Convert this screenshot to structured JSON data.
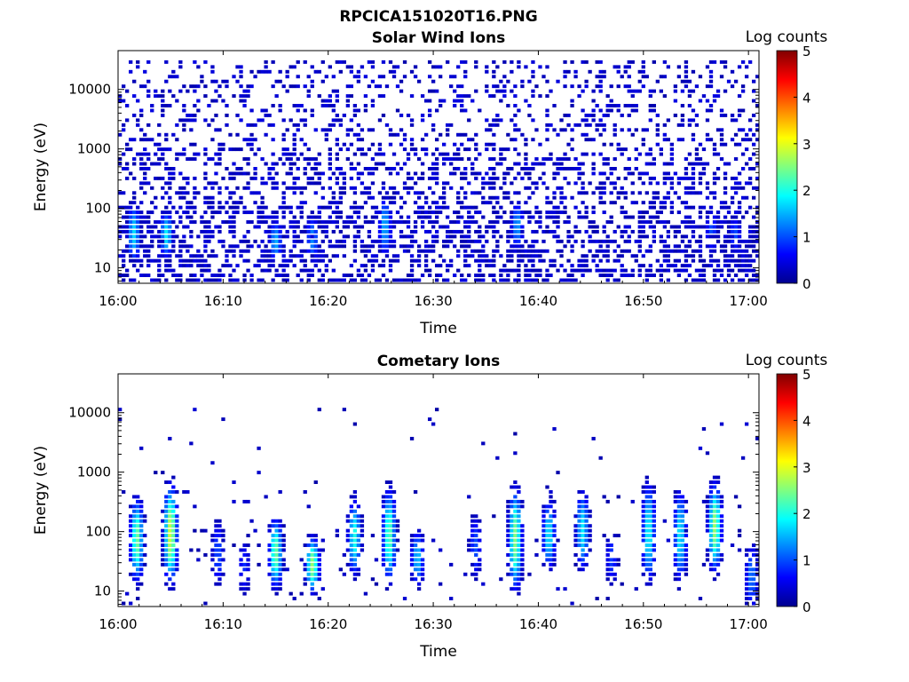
{
  "figure": {
    "title": "RPCICA151020T16.PNG"
  },
  "chart_data": [
    {
      "type": "heatmap",
      "title": "Solar Wind Ions",
      "xlabel": "Time",
      "ylabel": "Energy (eV)",
      "x_ticks": [
        "16:00",
        "16:10",
        "16:20",
        "16:30",
        "16:40",
        "16:50",
        "17:00"
      ],
      "xlim_minutes": [
        0,
        61
      ],
      "y_ticks": [
        "10",
        "100",
        "1000",
        "10000"
      ],
      "y_scale": "log",
      "ylim": [
        5.5,
        45000
      ],
      "colorbar": {
        "label": "Log counts",
        "ticks": [
          "0",
          "1",
          "2",
          "3",
          "4",
          "5"
        ],
        "range": [
          0,
          5
        ],
        "colormap": "jet"
      },
      "features": [
        {
          "t": 1.5,
          "e_lo": 15,
          "e_hi": 90,
          "peak": 1.7
        },
        {
          "t": 4.6,
          "e_lo": 18,
          "e_hi": 70,
          "peak": 1.8
        },
        {
          "t": 15.0,
          "e_lo": 15,
          "e_hi": 50,
          "peak": 1.5
        },
        {
          "t": 18.5,
          "e_lo": 15,
          "e_hi": 60,
          "peak": 1.3
        },
        {
          "t": 25.4,
          "e_lo": 20,
          "e_hi": 120,
          "peak": 1.5
        },
        {
          "t": 38.0,
          "e_lo": 25,
          "e_hi": 100,
          "peak": 1.4
        },
        {
          "t": 56.5,
          "e_lo": 20,
          "e_hi": 80,
          "peak": 1.0
        },
        {
          "t": 58.7,
          "e_lo": 20,
          "e_hi": 60,
          "peak": 1.0
        }
      ],
      "background": {
        "level": 0.35,
        "density": 0.35,
        "e_max": 30000
      }
    },
    {
      "type": "heatmap",
      "title": "Cometary Ions",
      "xlabel": "Time",
      "ylabel": "Energy (eV)",
      "x_ticks": [
        "16:00",
        "16:10",
        "16:20",
        "16:30",
        "16:40",
        "16:50",
        "17:00"
      ],
      "xlim_minutes": [
        0,
        61
      ],
      "y_ticks": [
        "10",
        "100",
        "1000",
        "10000"
      ],
      "y_scale": "log",
      "ylim": [
        5.5,
        45000
      ],
      "colorbar": {
        "label": "Log counts",
        "ticks": [
          "0",
          "1",
          "2",
          "3",
          "4",
          "5"
        ],
        "range": [
          0,
          5
        ],
        "colormap": "jet"
      },
      "features": [
        {
          "t": 1.8,
          "e_lo": 20,
          "e_hi": 250,
          "peak": 2.4
        },
        {
          "t": 5.0,
          "e_lo": 20,
          "e_hi": 400,
          "peak": 2.9
        },
        {
          "t": 9.5,
          "e_lo": 15,
          "e_hi": 120,
          "peak": 1.0
        },
        {
          "t": 12.0,
          "e_lo": 10,
          "e_hi": 60,
          "peak": 0.8
        },
        {
          "t": 15.0,
          "e_lo": 15,
          "e_hi": 120,
          "peak": 2.4
        },
        {
          "t": 18.5,
          "e_lo": 12,
          "e_hi": 60,
          "peak": 2.6
        },
        {
          "t": 22.5,
          "e_lo": 25,
          "e_hi": 250,
          "peak": 2.0
        },
        {
          "t": 25.8,
          "e_lo": 20,
          "e_hi": 350,
          "peak": 2.3
        },
        {
          "t": 28.5,
          "e_lo": 15,
          "e_hi": 80,
          "peak": 1.6
        },
        {
          "t": 34.0,
          "e_lo": 20,
          "e_hi": 150,
          "peak": 1.0
        },
        {
          "t": 37.8,
          "e_lo": 15,
          "e_hi": 350,
          "peak": 2.5
        },
        {
          "t": 41.0,
          "e_lo": 30,
          "e_hi": 250,
          "peak": 1.8
        },
        {
          "t": 44.2,
          "e_lo": 30,
          "e_hi": 350,
          "peak": 1.8
        },
        {
          "t": 47.0,
          "e_lo": 15,
          "e_hi": 80,
          "peak": 0.9
        },
        {
          "t": 50.5,
          "e_lo": 20,
          "e_hi": 450,
          "peak": 1.9
        },
        {
          "t": 53.5,
          "e_lo": 20,
          "e_hi": 350,
          "peak": 1.8
        },
        {
          "t": 56.8,
          "e_lo": 30,
          "e_hi": 450,
          "peak": 2.6
        },
        {
          "t": 60.3,
          "e_lo": 6,
          "e_hi": 50,
          "peak": 1.2
        }
      ],
      "background": {
        "level": 0.3,
        "density": 0.02,
        "e_max": 12000
      }
    }
  ]
}
